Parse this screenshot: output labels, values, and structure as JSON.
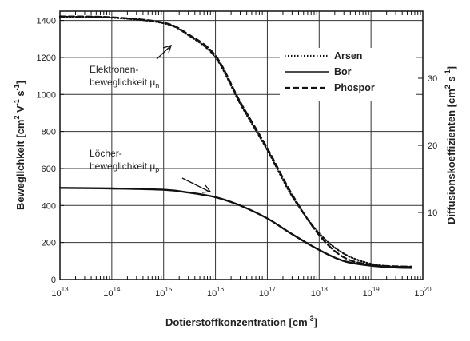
{
  "chart_data": {
    "type": "line",
    "x_scale": "log",
    "xlim": [
      10000000000000.0,
      1e+20
    ],
    "ylim": [
      0,
      1450
    ],
    "y2lim": [
      0,
      40
    ],
    "grid": true,
    "legend_position": "top-right",
    "xlabel": "Dotierstoffkonzentration [cm⁻³]",
    "ylabel": "Beweglichkeit [cm² V⁻¹ s⁻¹]",
    "y2label": "Diffusionskoeffizienten [cm² s⁻¹]",
    "x_ticks": [
      {
        "value": 10000000000000.0,
        "base": "10",
        "exp": "13"
      },
      {
        "value": 100000000000000.0,
        "base": "10",
        "exp": "14"
      },
      {
        "value": 1000000000000000.0,
        "base": "10",
        "exp": "15"
      },
      {
        "value": 1e+16,
        "base": "10",
        "exp": "16"
      },
      {
        "value": 1e+17,
        "base": "10",
        "exp": "17"
      },
      {
        "value": 1e+18,
        "base": "10",
        "exp": "18"
      },
      {
        "value": 1e+19,
        "base": "10",
        "exp": "19"
      },
      {
        "value": 1e+20,
        "base": "10",
        "exp": "20"
      }
    ],
    "y_ticks": [
      {
        "value": 0,
        "label": "0"
      },
      {
        "value": 200,
        "label": "200"
      },
      {
        "value": 400,
        "label": "400"
      },
      {
        "value": 600,
        "label": "600"
      },
      {
        "value": 800,
        "label": "800"
      },
      {
        "value": 1000,
        "label": "1000"
      },
      {
        "value": 1200,
        "label": "1200"
      },
      {
        "value": 1400,
        "label": "1400"
      }
    ],
    "y2_ticks": [
      {
        "value": 10,
        "label": "10"
      },
      {
        "value": 20,
        "label": "20"
      },
      {
        "value": 30,
        "label": "30"
      }
    ],
    "series": [
      {
        "name": "Arsen",
        "style": "dotted",
        "x": [
          10000000000000.0,
          100000000000000.0,
          1000000000000000.0,
          3000000000000000.0,
          1e+16,
          3e+16,
          1e+17,
          3e+17,
          1e+18,
          3e+18,
          1e+19,
          3e+19,
          6e+19
        ],
        "y": [
          1420,
          1415,
          1385,
          1320,
          1200,
          950,
          700,
          450,
          250,
          140,
          85,
          70,
          68
        ]
      },
      {
        "name": "Bor",
        "style": "solid",
        "x": [
          10000000000000.0,
          100000000000000.0,
          1000000000000000.0,
          3000000000000000.0,
          1e+16,
          3e+16,
          1e+17,
          3e+17,
          1e+18,
          3e+18,
          1e+19,
          3e+19,
          6e+19
        ],
        "y": [
          495,
          492,
          485,
          470,
          445,
          400,
          330,
          245,
          160,
          100,
          75,
          65,
          63
        ]
      },
      {
        "name": "Phospor",
        "style": "dashed",
        "x": [
          10000000000000.0,
          100000000000000.0,
          1000000000000000.0,
          3000000000000000.0,
          1e+16,
          3e+16,
          1e+17,
          3e+17,
          1e+18,
          3e+18,
          1e+19,
          3e+19,
          6e+19
        ],
        "y": [
          1422,
          1417,
          1388,
          1325,
          1210,
          960,
          710,
          460,
          240,
          120,
          80,
          72,
          70
        ]
      }
    ],
    "annotations": [
      {
        "lines": [
          "Elektronen-",
          "beweglichkeit μ"
        ],
        "sub": "n"
      },
      {
        "lines": [
          "Löcher-",
          "beweglichkeit μ"
        ],
        "sub": "p"
      }
    ]
  }
}
